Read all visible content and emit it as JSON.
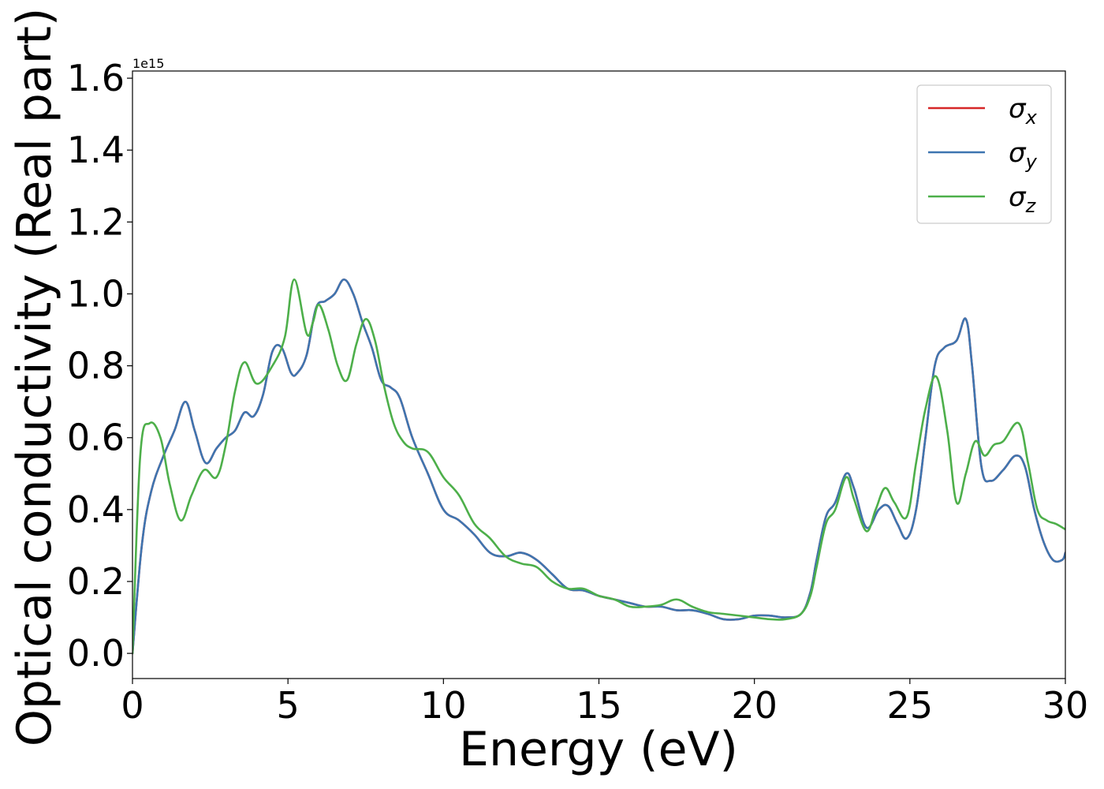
{
  "chart_data": {
    "type": "line",
    "xlabel": "Energy (eV)",
    "ylabel": "Optical conductivity (Real part)",
    "y_offset_label": "1e15",
    "xlim": [
      0,
      30
    ],
    "ylim": [
      -0.07,
      1.62
    ],
    "x_ticks": [
      0,
      5,
      10,
      15,
      20,
      25,
      30
    ],
    "x_tick_labels": [
      "0",
      "5",
      "10",
      "15",
      "20",
      "25",
      "30"
    ],
    "y_ticks": [
      0.0,
      0.2,
      0.4,
      0.6,
      0.8,
      1.0,
      1.2,
      1.4,
      1.6
    ],
    "y_tick_labels": [
      "0.0",
      "0.2",
      "0.4",
      "0.6",
      "0.8",
      "1.0",
      "1.2",
      "1.4",
      "1.6"
    ],
    "grid": false,
    "legend_position": "top-right",
    "series": [
      {
        "name": "σx",
        "legend_base": "σ",
        "legend_sub": "x",
        "color": "#d62728",
        "x": [
          0,
          0.3,
          0.6,
          1.0,
          1.35,
          1.7,
          2.0,
          2.35,
          2.7,
          3.0,
          3.3,
          3.6,
          3.9,
          4.2,
          4.5,
          4.8,
          5.1,
          5.3,
          5.6,
          5.9,
          6.2,
          6.5,
          6.8,
          7.1,
          7.4,
          7.7,
          8.0,
          8.3,
          8.6,
          9.0,
          9.5,
          10.0,
          10.5,
          11.0,
          11.5,
          12.0,
          12.5,
          13.0,
          13.5,
          14.0,
          14.5,
          15.0,
          15.5,
          16.0,
          16.5,
          17.0,
          17.5,
          18.0,
          18.5,
          19.0,
          19.5,
          20.0,
          20.5,
          21.0,
          21.5,
          21.8,
          22.0,
          22.3,
          22.6,
          22.95,
          23.2,
          23.6,
          24.0,
          24.3,
          24.6,
          24.9,
          25.2,
          25.5,
          25.8,
          26.1,
          26.5,
          26.8,
          27.0,
          27.3,
          27.6,
          28.0,
          28.4,
          28.7,
          29.0,
          29.3,
          29.6,
          29.9,
          30.0
        ],
        "values": [
          0.0,
          0.3,
          0.45,
          0.55,
          0.62,
          0.7,
          0.62,
          0.53,
          0.57,
          0.6,
          0.62,
          0.67,
          0.66,
          0.72,
          0.84,
          0.85,
          0.78,
          0.78,
          0.83,
          0.96,
          0.98,
          1.0,
          1.04,
          1.0,
          0.92,
          0.85,
          0.76,
          0.74,
          0.71,
          0.6,
          0.5,
          0.4,
          0.37,
          0.33,
          0.28,
          0.27,
          0.28,
          0.26,
          0.22,
          0.18,
          0.175,
          0.16,
          0.15,
          0.14,
          0.13,
          0.13,
          0.12,
          0.12,
          0.11,
          0.095,
          0.095,
          0.105,
          0.105,
          0.1,
          0.11,
          0.17,
          0.26,
          0.38,
          0.42,
          0.5,
          0.46,
          0.35,
          0.4,
          0.41,
          0.36,
          0.32,
          0.4,
          0.6,
          0.8,
          0.85,
          0.87,
          0.93,
          0.8,
          0.52,
          0.48,
          0.51,
          0.55,
          0.52,
          0.4,
          0.31,
          0.26,
          0.26,
          0.28
        ]
      },
      {
        "name": "σy",
        "legend_base": "σ",
        "legend_sub": "y",
        "color": "#3e75b0",
        "x": [
          0,
          0.3,
          0.6,
          1.0,
          1.35,
          1.7,
          2.0,
          2.35,
          2.7,
          3.0,
          3.3,
          3.6,
          3.9,
          4.2,
          4.5,
          4.8,
          5.1,
          5.3,
          5.6,
          5.9,
          6.2,
          6.5,
          6.8,
          7.1,
          7.4,
          7.7,
          8.0,
          8.3,
          8.6,
          9.0,
          9.5,
          10.0,
          10.5,
          11.0,
          11.5,
          12.0,
          12.5,
          13.0,
          13.5,
          14.0,
          14.5,
          15.0,
          15.5,
          16.0,
          16.5,
          17.0,
          17.5,
          18.0,
          18.5,
          19.0,
          19.5,
          20.0,
          20.5,
          21.0,
          21.5,
          21.8,
          22.0,
          22.3,
          22.6,
          22.95,
          23.2,
          23.6,
          24.0,
          24.3,
          24.6,
          24.9,
          25.2,
          25.5,
          25.8,
          26.1,
          26.5,
          26.8,
          27.0,
          27.3,
          27.6,
          28.0,
          28.4,
          28.7,
          29.0,
          29.3,
          29.6,
          29.9,
          30.0
        ],
        "values": [
          0.0,
          0.3,
          0.45,
          0.55,
          0.62,
          0.7,
          0.62,
          0.53,
          0.57,
          0.6,
          0.62,
          0.67,
          0.66,
          0.72,
          0.84,
          0.85,
          0.78,
          0.78,
          0.83,
          0.96,
          0.98,
          1.0,
          1.04,
          1.0,
          0.92,
          0.85,
          0.76,
          0.74,
          0.71,
          0.6,
          0.5,
          0.4,
          0.37,
          0.33,
          0.28,
          0.27,
          0.28,
          0.26,
          0.22,
          0.18,
          0.175,
          0.16,
          0.15,
          0.14,
          0.13,
          0.13,
          0.12,
          0.12,
          0.11,
          0.095,
          0.095,
          0.105,
          0.105,
          0.1,
          0.11,
          0.17,
          0.26,
          0.38,
          0.42,
          0.5,
          0.46,
          0.35,
          0.4,
          0.41,
          0.36,
          0.32,
          0.4,
          0.6,
          0.8,
          0.85,
          0.87,
          0.93,
          0.8,
          0.52,
          0.48,
          0.51,
          0.55,
          0.52,
          0.4,
          0.31,
          0.26,
          0.26,
          0.28
        ]
      },
      {
        "name": "σz",
        "legend_base": "σ",
        "legend_sub": "z",
        "color": "#4daf4a",
        "x": [
          0,
          0.25,
          0.55,
          0.9,
          1.2,
          1.55,
          1.9,
          2.3,
          2.7,
          3.0,
          3.3,
          3.6,
          4.0,
          4.5,
          4.9,
          5.2,
          5.6,
          5.8,
          6.0,
          6.3,
          6.6,
          6.9,
          7.2,
          7.5,
          7.8,
          8.1,
          8.4,
          8.7,
          9.0,
          9.5,
          10.0,
          10.5,
          11.0,
          11.5,
          12.0,
          12.5,
          13.0,
          13.5,
          14.0,
          14.5,
          15.0,
          15.5,
          16.0,
          16.5,
          17.0,
          17.5,
          18.0,
          18.5,
          19.0,
          19.5,
          20.0,
          20.5,
          21.0,
          21.5,
          21.8,
          22.0,
          22.3,
          22.6,
          22.95,
          23.2,
          23.6,
          23.9,
          24.2,
          24.5,
          24.9,
          25.2,
          25.5,
          25.85,
          26.2,
          26.5,
          26.8,
          27.1,
          27.4,
          27.7,
          28.0,
          28.5,
          28.8,
          29.1,
          29.4,
          29.7,
          30.0
        ],
        "values": [
          0.0,
          0.55,
          0.64,
          0.6,
          0.47,
          0.37,
          0.44,
          0.51,
          0.49,
          0.58,
          0.73,
          0.81,
          0.75,
          0.8,
          0.88,
          1.04,
          0.89,
          0.92,
          0.97,
          0.9,
          0.8,
          0.76,
          0.86,
          0.93,
          0.87,
          0.74,
          0.64,
          0.59,
          0.57,
          0.56,
          0.49,
          0.44,
          0.36,
          0.32,
          0.27,
          0.25,
          0.24,
          0.2,
          0.18,
          0.18,
          0.16,
          0.15,
          0.13,
          0.13,
          0.135,
          0.15,
          0.13,
          0.115,
          0.11,
          0.105,
          0.1,
          0.095,
          0.095,
          0.11,
          0.16,
          0.24,
          0.36,
          0.4,
          0.49,
          0.43,
          0.34,
          0.4,
          0.46,
          0.42,
          0.38,
          0.53,
          0.68,
          0.77,
          0.62,
          0.42,
          0.5,
          0.59,
          0.55,
          0.58,
          0.59,
          0.64,
          0.53,
          0.4,
          0.37,
          0.36,
          0.345
        ]
      }
    ]
  }
}
